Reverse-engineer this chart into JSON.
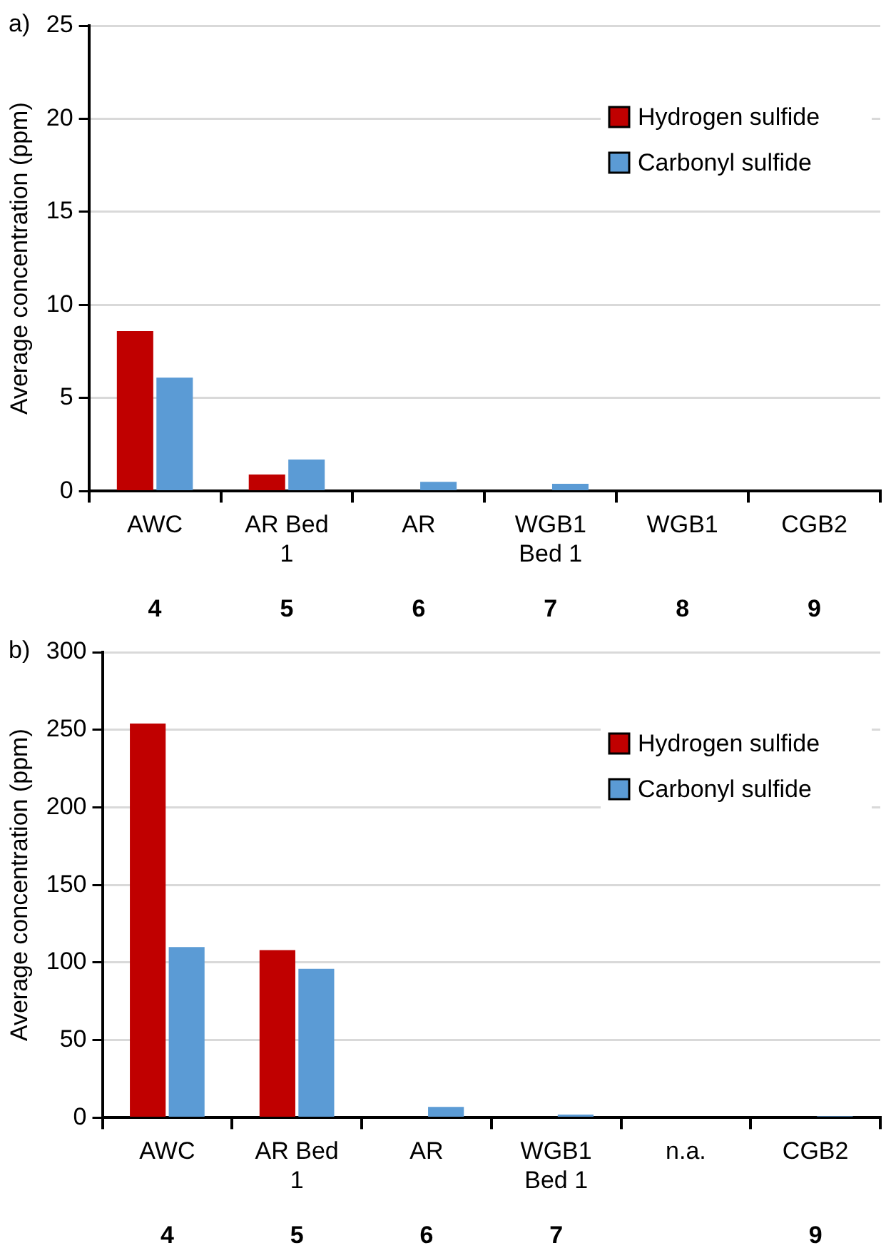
{
  "chart_data": [
    {
      "type": "bar",
      "title": "a)",
      "ylabel": "Average concentration (ppm)",
      "categories": [
        "AWC\n4",
        "AR Bed 1\n5",
        "AR\n6",
        "WGB1 Bed 1\n7",
        "WGB1\n8",
        "CGB2\n9"
      ],
      "series": [
        {
          "name": "Hydrogen sulfide",
          "color": "#c00000",
          "values": [
            8.6,
            0.9,
            0,
            0,
            0,
            0
          ]
        },
        {
          "name": "Carbonyl sulfide",
          "color": "#5b9bd5",
          "values": [
            6.1,
            1.7,
            0.5,
            0.4,
            0,
            0
          ]
        }
      ],
      "ylim": [
        0,
        25
      ],
      "yticks": [
        0,
        5,
        10,
        15,
        20,
        25
      ],
      "grid": "y",
      "legend": "top right"
    },
    {
      "type": "bar",
      "title": "b)",
      "ylabel": "Average concentration (ppm)",
      "categories": [
        "AWC\n4",
        "AR Bed 1\n5",
        "AR\n6",
        "WGB1 Bed 1\n7",
        "n.a.\n",
        "CGB2\n9"
      ],
      "series": [
        {
          "name": "Hydrogen sulfide",
          "color": "#c00000",
          "values": [
            254,
            108,
            0,
            0,
            0,
            0
          ]
        },
        {
          "name": "Carbonyl sulfide",
          "color": "#5b9bd5",
          "values": [
            110,
            96,
            7,
            2,
            0,
            1
          ]
        }
      ],
      "ylim": [
        0,
        300
      ],
      "yticks": [
        0,
        50,
        100,
        150,
        200,
        250,
        300
      ],
      "grid": "y",
      "legend": "top right"
    }
  ]
}
